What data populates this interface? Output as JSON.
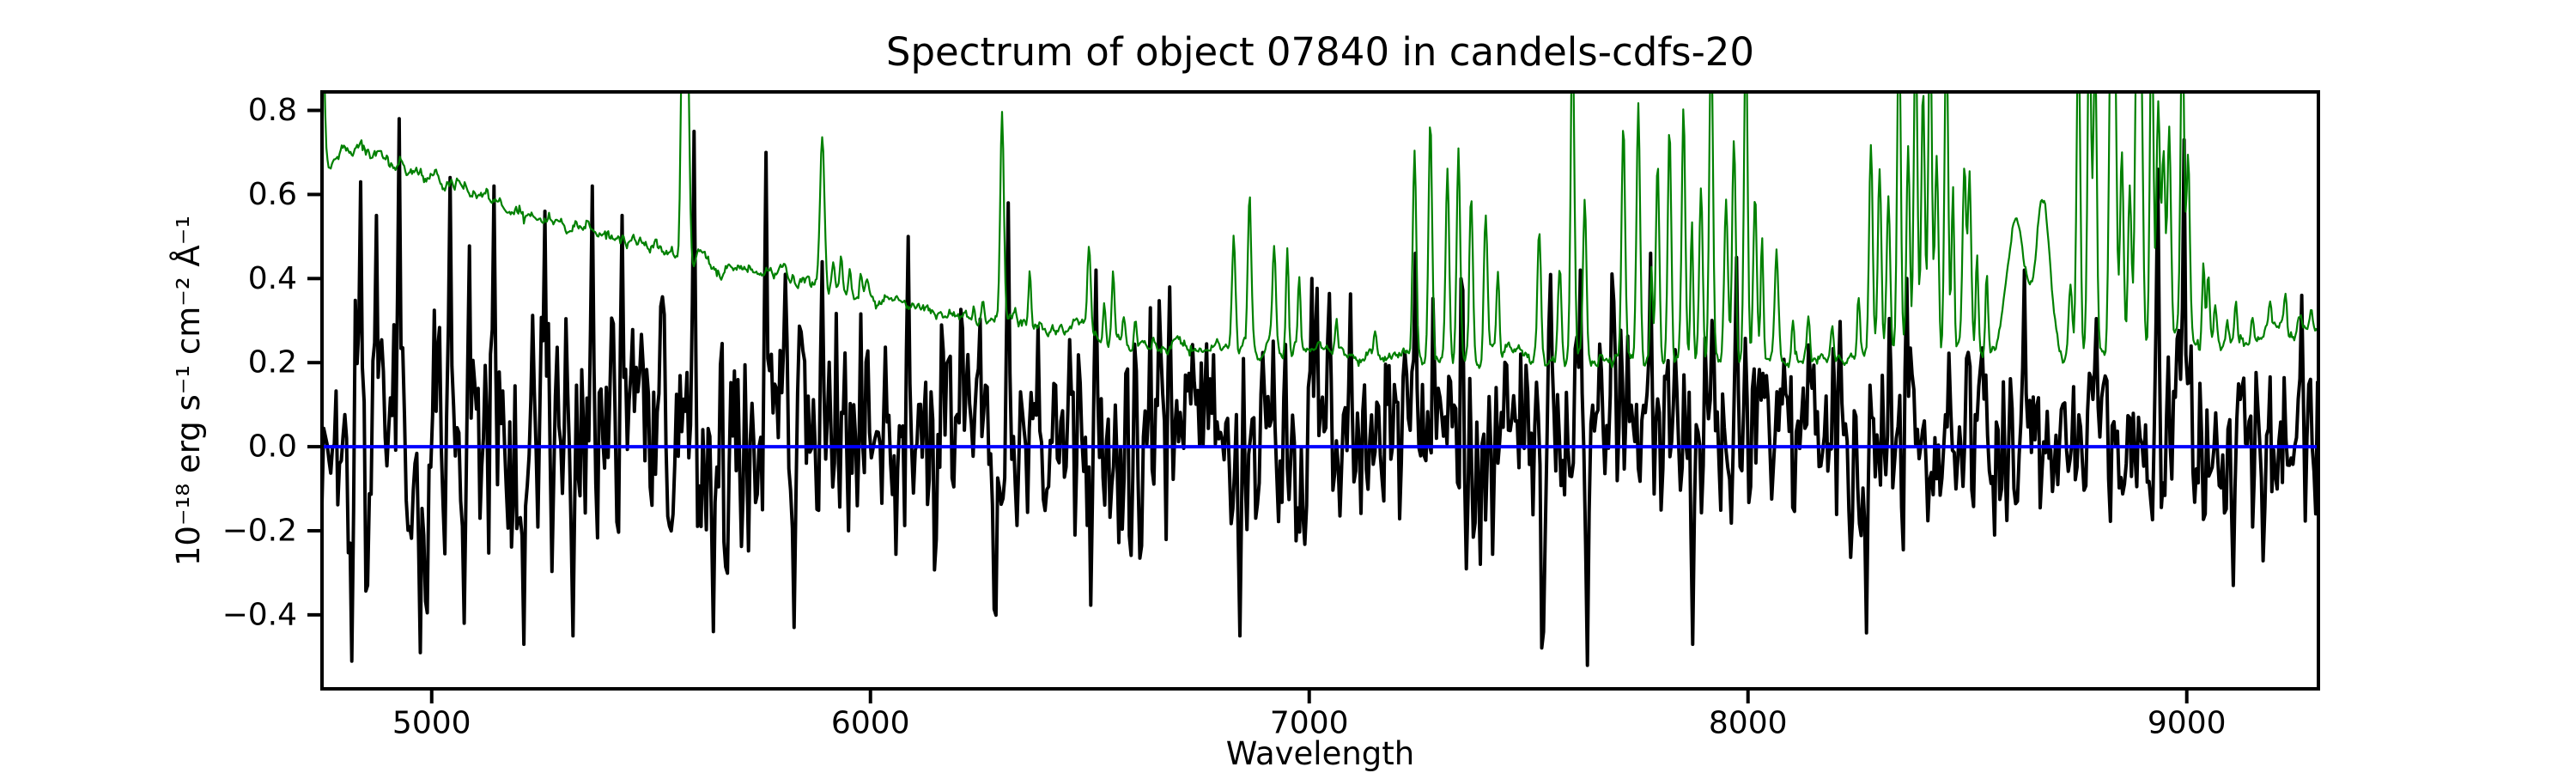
{
  "figure": {
    "title": "Spectrum of object 07840 in candels-cdfs-20",
    "xlabel": "Wavelength",
    "ylabel": "10⁻¹⁸ erg s⁻¹ cm⁻² Å⁻¹",
    "background_color": "#ffffff",
    "axes_color": "#000000"
  },
  "chart_data": {
    "type": "line",
    "title": "Spectrum of object 07840 in candels-cdfs-20",
    "xlabel": "Wavelength",
    "ylabel": "10^-18 erg s^-1 cm^-2 A^-1",
    "xlim": [
      4750,
      9300
    ],
    "ylim": [
      -0.576,
      0.844
    ],
    "xticks": [
      5000,
      6000,
      7000,
      8000,
      9000
    ],
    "xtick_labels": [
      "5000",
      "6000",
      "7000",
      "8000",
      "9000"
    ],
    "yticks": [
      -0.4,
      -0.2,
      0.0,
      0.2,
      0.4,
      0.6,
      0.8
    ],
    "ytick_labels": [
      "−0.4",
      "−0.2",
      "0.0",
      "0.2",
      "0.4",
      "0.6",
      "0.8"
    ],
    "grid": false,
    "legend": null,
    "series": [
      {
        "name": "flux",
        "description": "observed object spectrum (noisy black line around zero)",
        "color": "#000000",
        "linewidth": 4,
        "style": "noisy",
        "seed": 42,
        "sample_step": 4,
        "mean_keypoints": [
          [
            4750,
            0.05
          ],
          [
            5500,
            0.04
          ],
          [
            6500,
            0.03
          ],
          [
            7500,
            0.02
          ],
          [
            9300,
            0.02
          ]
        ],
        "sigma_keypoints": [
          [
            4750,
            0.18
          ],
          [
            5400,
            0.17
          ],
          [
            6000,
            0.155
          ],
          [
            6600,
            0.145
          ],
          [
            7300,
            0.14
          ],
          [
            7900,
            0.14
          ],
          [
            8300,
            0.125
          ],
          [
            8800,
            0.12
          ],
          [
            9300,
            0.135
          ]
        ],
        "spike_prob": 0.015,
        "spike_scale": 2.0,
        "features": [
          [
            4818,
            -0.51
          ],
          [
            4838,
            0.63
          ],
          [
            4872,
            0.55
          ],
          [
            4926,
            0.78
          ],
          [
            4975,
            -0.49
          ],
          [
            5042,
            0.64
          ],
          [
            5075,
            -0.42
          ],
          [
            5140,
            0.62
          ],
          [
            5210,
            -0.47
          ],
          [
            5258,
            0.56
          ],
          [
            5322,
            -0.45
          ],
          [
            5367,
            0.62
          ],
          [
            5432,
            0.55
          ],
          [
            5597,
            0.75
          ],
          [
            5642,
            -0.44
          ],
          [
            5762,
            0.7
          ],
          [
            5826,
            -0.43
          ],
          [
            5890,
            0.44
          ],
          [
            6085,
            0.5
          ],
          [
            6315,
            0.58
          ],
          [
            6512,
            0.42
          ],
          [
            6680,
            0.38
          ],
          [
            6840,
            -0.45
          ],
          [
            7005,
            0.4
          ],
          [
            7243,
            0.46
          ],
          [
            7618,
            0.42
          ],
          [
            7632,
            -0.52
          ],
          [
            7778,
            0.46
          ],
          [
            7872,
            -0.47
          ],
          [
            7973,
            0.45
          ],
          [
            8361,
            0.4
          ],
          [
            8630,
            0.42
          ],
          [
            8935,
            0.66
          ],
          [
            8994,
            0.73
          ],
          [
            9105,
            -0.33
          ],
          [
            9262,
            0.36
          ]
        ]
      },
      {
        "name": "sky",
        "description": "sky / noise spectrum (thin green line, declining continuum with emission-line spikes)",
        "color": "#008000",
        "linewidth": 2.2,
        "style": "continuum-plus-lines",
        "seed": 7,
        "sample_step": 2.5,
        "wiggle_sigma": 0.007,
        "continuum_keypoints": [
          [
            4750,
            0.67
          ],
          [
            4800,
            0.695
          ],
          [
            4840,
            0.7
          ],
          [
            4880,
            0.685
          ],
          [
            4950,
            0.665
          ],
          [
            5000,
            0.645
          ],
          [
            5100,
            0.6
          ],
          [
            5200,
            0.565
          ],
          [
            5300,
            0.53
          ],
          [
            5400,
            0.5
          ],
          [
            5500,
            0.468
          ],
          [
            5600,
            0.44
          ],
          [
            5700,
            0.425
          ],
          [
            5800,
            0.41
          ],
          [
            5900,
            0.385
          ],
          [
            6000,
            0.365
          ],
          [
            6100,
            0.335
          ],
          [
            6200,
            0.31
          ],
          [
            6300,
            0.295
          ],
          [
            6400,
            0.28
          ],
          [
            6500,
            0.268
          ],
          [
            6600,
            0.247
          ],
          [
            6700,
            0.237
          ],
          [
            6800,
            0.23
          ],
          [
            6900,
            0.227
          ],
          [
            7000,
            0.222
          ],
          [
            7100,
            0.216
          ],
          [
            7200,
            0.212
          ],
          [
            7350,
            0.215
          ],
          [
            7500,
            0.21
          ],
          [
            7650,
            0.214
          ],
          [
            7800,
            0.21
          ],
          [
            7950,
            0.212
          ],
          [
            8100,
            0.21
          ],
          [
            8250,
            0.215
          ],
          [
            8400,
            0.22
          ],
          [
            8550,
            0.216
          ],
          [
            8700,
            0.22
          ],
          [
            8850,
            0.228
          ],
          [
            9000,
            0.25
          ],
          [
            9100,
            0.262
          ],
          [
            9200,
            0.28
          ],
          [
            9300,
            0.29
          ]
        ],
        "lines": [
          [
            4752,
            1.0,
            4
          ],
          [
            5460,
            0.5,
            4
          ],
          [
            5572,
            1.05,
            4
          ],
          [
            5583,
            0.98,
            4
          ],
          [
            5890,
            0.735,
            5
          ],
          [
            5915,
            0.44,
            3
          ],
          [
            5933,
            0.46,
            3
          ],
          [
            5953,
            0.43,
            3
          ],
          [
            5977,
            0.42,
            3
          ],
          [
            6235,
            0.34,
            3
          ],
          [
            6257,
            0.34,
            3
          ],
          [
            6300,
            0.79,
            4
          ],
          [
            6329,
            0.31,
            3
          ],
          [
            6363,
            0.42,
            3
          ],
          [
            6498,
            0.47,
            4
          ],
          [
            6533,
            0.36,
            3
          ],
          [
            6553,
            0.42,
            3
          ],
          [
            6577,
            0.32,
            3
          ],
          [
            6604,
            0.33,
            3
          ],
          [
            6828,
            0.5,
            4
          ],
          [
            6864,
            0.59,
            4
          ],
          [
            6920,
            0.47,
            4
          ],
          [
            6950,
            0.47,
            3
          ],
          [
            6977,
            0.4,
            3
          ],
          [
            7062,
            0.3,
            3
          ],
          [
            7150,
            0.27,
            3
          ],
          [
            7240,
            0.71,
            4
          ],
          [
            7276,
            0.78,
            4
          ],
          [
            7315,
            0.67,
            4
          ],
          [
            7340,
            0.71,
            4
          ],
          [
            7369,
            0.62,
            4
          ],
          [
            7402,
            0.55,
            4
          ],
          [
            7430,
            0.4,
            3
          ],
          [
            7524,
            0.53,
            4
          ],
          [
            7571,
            0.45,
            4
          ],
          [
            7600,
            1.02,
            4
          ],
          [
            7628,
            0.6,
            4
          ],
          [
            7716,
            0.78,
            4
          ],
          [
            7750,
            0.81,
            4
          ],
          [
            7780,
            0.45,
            3
          ],
          [
            7794,
            0.69,
            4
          ],
          [
            7821,
            0.77,
            4
          ],
          [
            7853,
            0.8,
            4
          ],
          [
            7872,
            0.55,
            3
          ],
          [
            7893,
            0.62,
            4
          ],
          [
            7916,
            1.02,
            4
          ],
          [
            7950,
            0.6,
            4
          ],
          [
            7968,
            0.75,
            4
          ],
          [
            7995,
            1.02,
            4
          ],
          [
            8016,
            0.6,
            4
          ],
          [
            8032,
            0.5,
            3
          ],
          [
            8065,
            0.45,
            4
          ],
          [
            8102,
            0.3,
            3
          ],
          [
            8138,
            0.32,
            3
          ],
          [
            8192,
            0.3,
            3
          ],
          [
            8252,
            0.35,
            3
          ],
          [
            8280,
            0.72,
            4
          ],
          [
            8300,
            0.65,
            4
          ],
          [
            8320,
            0.58,
            4
          ],
          [
            8344,
            1.05,
            4
          ],
          [
            8365,
            0.72,
            4
          ],
          [
            8382,
            1.02,
            4
          ],
          [
            8399,
            0.85,
            4
          ],
          [
            8415,
            1.05,
            4
          ],
          [
            8430,
            0.7,
            4
          ],
          [
            8452,
            1.02,
            4
          ],
          [
            8467,
            0.6,
            3
          ],
          [
            8493,
            0.66,
            4
          ],
          [
            8505,
            0.66,
            4
          ],
          [
            8522,
            0.45,
            3
          ],
          [
            8544,
            0.42,
            3
          ],
          [
            8610,
            0.545,
            20
          ],
          [
            8672,
            0.585,
            16
          ],
          [
            8735,
            0.4,
            4
          ],
          [
            8753,
            1.02,
            4
          ],
          [
            8778,
            1.05,
            4
          ],
          [
            8791,
            0.95,
            4
          ],
          [
            8827,
            1.05,
            4
          ],
          [
            8836,
            0.95,
            4
          ],
          [
            8852,
            0.7,
            4
          ],
          [
            8870,
            0.62,
            4
          ],
          [
            8886,
            1.02,
            4
          ],
          [
            8896,
            0.9,
            4
          ],
          [
            8920,
            1.05,
            4
          ],
          [
            8935,
            0.8,
            4
          ],
          [
            8947,
            0.7,
            4
          ],
          [
            8960,
            0.75,
            4
          ],
          [
            8990,
            1.02,
            4
          ],
          [
            9003,
            0.7,
            4
          ],
          [
            9038,
            0.45,
            3
          ],
          [
            9049,
            0.4,
            3
          ],
          [
            9065,
            0.35,
            3
          ],
          [
            9093,
            0.32,
            3
          ],
          [
            9112,
            0.35,
            3
          ],
          [
            9150,
            0.33,
            3
          ],
          [
            9190,
            0.35,
            3
          ],
          [
            9225,
            0.36,
            3
          ],
          [
            9257,
            0.33,
            3
          ],
          [
            9283,
            0.34,
            3
          ]
        ]
      },
      {
        "name": "zero-line",
        "description": "horizontal reference line at flux = 0",
        "color": "#0000ff",
        "linewidth": 4,
        "style": "hline",
        "y": 0.0
      }
    ]
  }
}
